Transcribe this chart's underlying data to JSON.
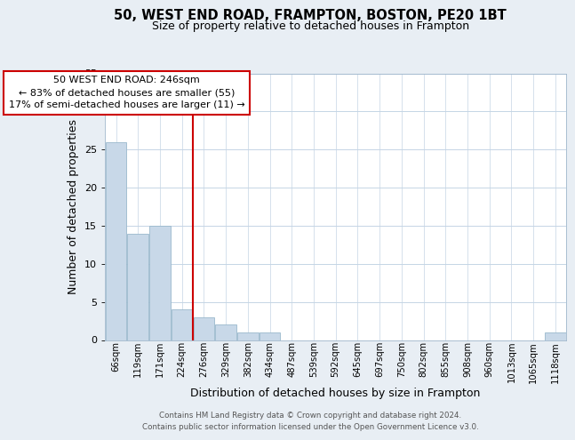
{
  "title": "50, WEST END ROAD, FRAMPTON, BOSTON, PE20 1BT",
  "subtitle": "Size of property relative to detached houses in Frampton",
  "xlabel": "Distribution of detached houses by size in Frampton",
  "ylabel": "Number of detached properties",
  "bar_color": "#c8d8e8",
  "bar_edge_color": "#9ab8cc",
  "categories": [
    "66sqm",
    "119sqm",
    "171sqm",
    "224sqm",
    "276sqm",
    "329sqm",
    "382sqm",
    "434sqm",
    "487sqm",
    "539sqm",
    "592sqm",
    "645sqm",
    "697sqm",
    "750sqm",
    "802sqm",
    "855sqm",
    "908sqm",
    "960sqm",
    "1013sqm",
    "1065sqm",
    "1118sqm"
  ],
  "values": [
    26,
    14,
    15,
    4,
    3,
    2,
    1,
    1,
    0,
    0,
    0,
    0,
    0,
    0,
    0,
    0,
    0,
    0,
    0,
    0,
    1
  ],
  "ylim": [
    0,
    35
  ],
  "yticks": [
    0,
    5,
    10,
    15,
    20,
    25,
    30,
    35
  ],
  "vline_x": 3.5,
  "vline_color": "#cc0000",
  "annotation_line1": "50 WEST END ROAD: 246sqm",
  "annotation_line2": "← 83% of detached houses are smaller (55)",
  "annotation_line3": "17% of semi-detached houses are larger (11) →",
  "footer_line1": "Contains HM Land Registry data © Crown copyright and database right 2024.",
  "footer_line2": "Contains public sector information licensed under the Open Government Licence v3.0.",
  "background_color": "#e8eef4",
  "plot_bg_color": "#ffffff",
  "grid_color": "#c5d5e5"
}
